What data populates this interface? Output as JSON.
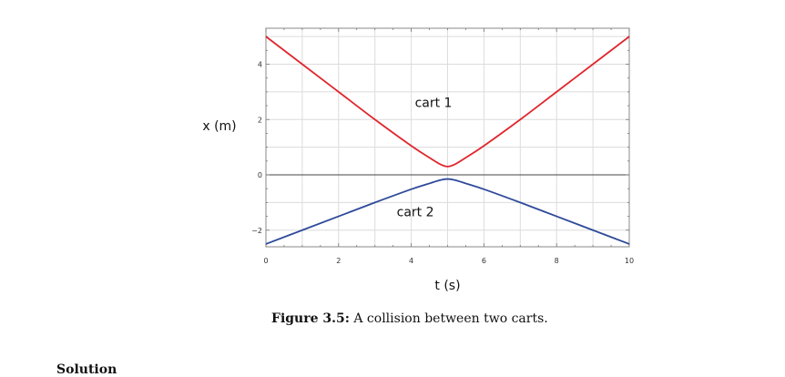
{
  "chart_data": {
    "type": "line",
    "title": "",
    "xlabel": "t (s)",
    "ylabel": "x (m)",
    "xlim": [
      0,
      10
    ],
    "ylim": [
      -2.6,
      5.3
    ],
    "x_ticks": [
      0,
      2,
      4,
      6,
      8,
      10
    ],
    "y_ticks": [
      -2,
      0,
      2,
      4
    ],
    "x_tick_labels": [
      "0",
      "2",
      "4",
      "6",
      "8",
      "10"
    ],
    "y_tick_labels": [
      "−2",
      "0",
      "2",
      "4"
    ],
    "grid": true,
    "annotations": [
      {
        "text": "cart 1",
        "x": 4.1,
        "y": 2.45
      },
      {
        "text": "cart 2",
        "x": 3.6,
        "y": -1.5
      }
    ],
    "series": [
      {
        "color": "#e0262d",
        "x": [
          0,
          1,
          2,
          3,
          4,
          4.5,
          4.8,
          5,
          5.2,
          5.5,
          6,
          7,
          8,
          9,
          10
        ],
        "y": [
          5.0,
          4.0,
          3.0,
          2.0,
          1.05,
          0.62,
          0.38,
          0.3,
          0.38,
          0.62,
          1.05,
          2.0,
          3.0,
          4.0,
          5.0
        ]
      },
      {
        "color": "#2e4a9a",
        "x": [
          0,
          1,
          2,
          3,
          4,
          4.5,
          4.8,
          5,
          5.2,
          5.5,
          6,
          7,
          8,
          9,
          10
        ],
        "y": [
          -2.5,
          -2.0,
          -1.5,
          -1.0,
          -0.52,
          -0.31,
          -0.19,
          -0.15,
          -0.19,
          -0.31,
          -0.52,
          -1.0,
          -1.5,
          -2.0,
          -2.5
        ]
      }
    ]
  },
  "caption": {
    "label": "Figure 3.5:",
    "text": "A collision between two carts."
  },
  "next_heading": "Solution"
}
